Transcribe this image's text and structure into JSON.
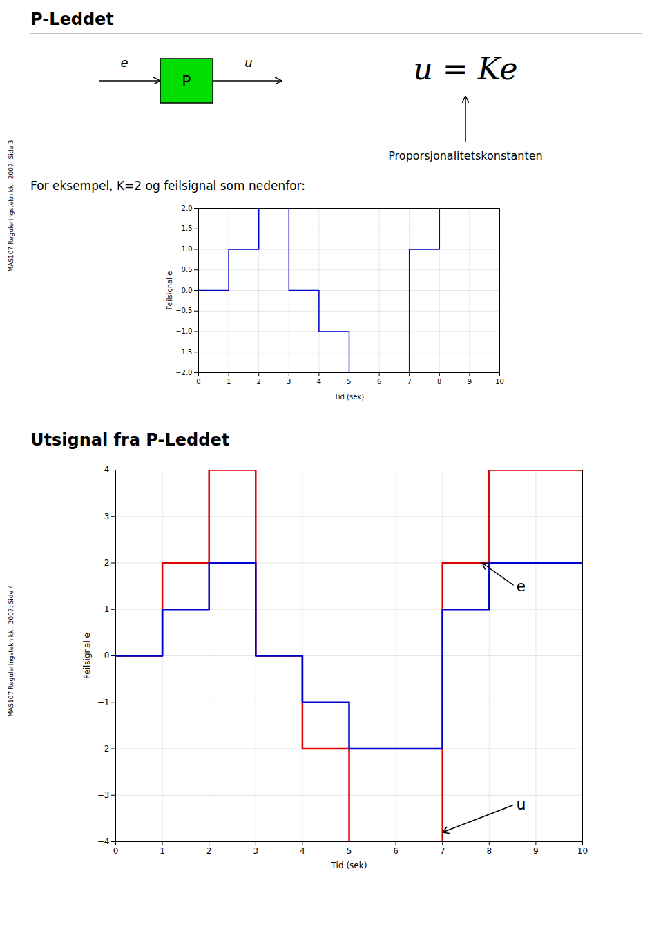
{
  "chart_data": [
    {
      "type": "step",
      "title": "P-Leddet",
      "subtitle": "For eksempel, K=2 og feilsignal som nedenfor:",
      "annotations": [
        {
          "text": "e"
        },
        {
          "text": "P",
          "color": "#00DD00"
        },
        {
          "text": "u"
        },
        {
          "text": "u = Ke"
        },
        {
          "text": "Proporsjonalitetskonstanten"
        },
        {
          "text": "MAS107 Reguleringsteknikk,  2007: Side 3"
        }
      ],
      "x": [
        0,
        1,
        1,
        2,
        2,
        3,
        3,
        4,
        4,
        5,
        5,
        7,
        7,
        8,
        8,
        10
      ],
      "series": [
        {
          "color": "#0000CC",
          "values": [
            0,
            0,
            1,
            1,
            2,
            2,
            0,
            0,
            -1,
            -1,
            -2,
            -2,
            1,
            1,
            2,
            2
          ]
        }
      ],
      "xlabel": "Tid (sek)",
      "ylabel": "Feilsignal e",
      "xlim": [
        0,
        10
      ],
      "ylim": [
        -2,
        2
      ],
      "xticks": [
        0,
        1,
        2,
        3,
        4,
        5,
        6,
        7,
        8,
        9,
        10
      ],
      "yticks": [
        -2,
        -1.5,
        -1,
        -0.5,
        0,
        0.5,
        1,
        1.5,
        2
      ],
      "grid": true
    },
    {
      "type": "step",
      "title": "Utsignal fra P-Leddet",
      "annotations": [
        {
          "text": "e",
          "xy": [
            7.85,
            2.0
          ],
          "xytext": [
            8.55,
            1.5
          ]
        },
        {
          "text": "u",
          "xy": [
            7.0,
            -3.8
          ],
          "xytext": [
            8.55,
            -3.2
          ]
        },
        {
          "text": "MAS107 Reguleringsteknikk,  2007: Side 4"
        }
      ],
      "x": [
        0,
        1,
        1,
        2,
        2,
        3,
        3,
        4,
        4,
        5,
        5,
        7,
        7,
        8,
        8,
        10
      ],
      "series": [
        {
          "color": "#DD0000",
          "values": [
            0,
            0,
            2,
            2,
            4,
            4,
            0,
            0,
            -2,
            -2,
            -4,
            -4,
            2,
            2,
            4,
            4
          ]
        },
        {
          "color": "#0000CC",
          "values": [
            0,
            0,
            1,
            1,
            2,
            2,
            0,
            0,
            -1,
            -1,
            -2,
            -2,
            1,
            1,
            2,
            2
          ]
        }
      ],
      "xlabel": "Tid (sek)",
      "ylabel": "Feilsignal e",
      "xlim": [
        0,
        10
      ],
      "ylim": [
        -4,
        4
      ],
      "xticks": [
        0,
        1,
        2,
        3,
        4,
        5,
        6,
        7,
        8,
        9,
        10
      ],
      "yticks": [
        -4,
        -3,
        -2,
        -1,
        0,
        1,
        2,
        3,
        4
      ],
      "grid": true
    }
  ]
}
